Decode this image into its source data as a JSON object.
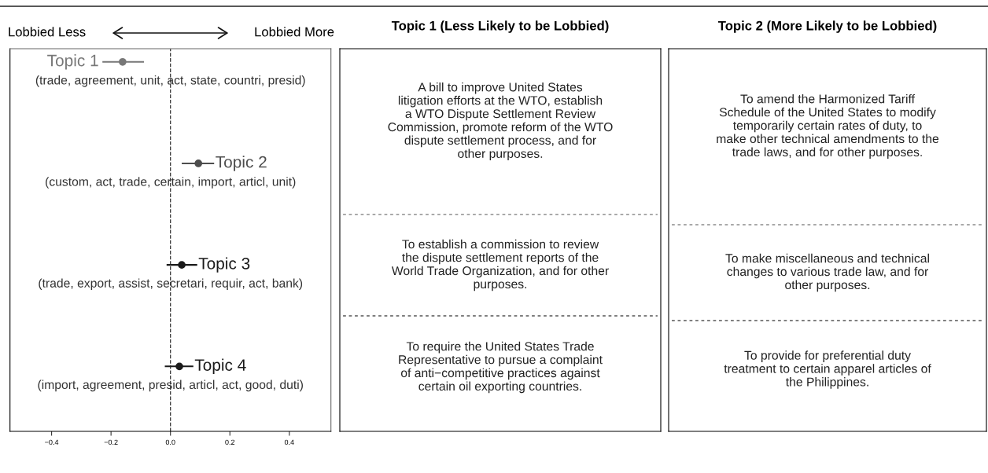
{
  "chart_data": [
    {
      "type": "scatter",
      "orientation": "horizontal",
      "categories": [
        "Topic 1",
        "Topic 2",
        "Topic 3",
        "Topic 4"
      ],
      "values": [
        -0.161,
        0.094,
        0.038,
        0.03
      ],
      "errors": [
        [
          -0.229,
          -0.089
        ],
        [
          0.038,
          0.147
        ],
        [
          -0.013,
          0.09
        ],
        [
          -0.019,
          0.077
        ]
      ],
      "colors": [
        "#777777",
        "#4d4d4d",
        "#1a1a1a",
        "#1a1a1a"
      ],
      "xlim": [
        -0.54,
        0.54
      ],
      "xticks": [
        -0.4,
        -0.2,
        {
          "value": 0,
          "label": "0.0"
        },
        0.2,
        0.4
      ],
      "ref_lines": [
        {
          "axis": "x",
          "value": 0,
          "line_style": "dashed",
          "color": "#333333"
        }
      ],
      "tick_labels": "x",
      "marker": "circle",
      "grid": false,
      "legend": false,
      "annotations": [
        "(trade, agreement, unit, act, state, countri, presid)",
        "(custom, act, trade, certain, import, articl, unit)",
        "(trade, export, assist, secretari, requir, act, bank)",
        "(import, agreement, presid, articl, act, good, duti)",
        "Lobbied Less",
        "Lobbied More"
      ]
    },
    {
      "type": "other",
      "title": "Topic 1 (Less Likely to be Lobbied)",
      "annotations": [
        "A bill to improve United States\nlitigation efforts at the WTO, establish\na WTO Dispute Settlement Review\nCommission, promote reform of the WTO\ndispute settlement process, and for\nother purposes.",
        "To establish a commission to review\nthe dispute settlement reports of the\nWorld Trade Organization, and for other\npurposes.",
        "To require the United States Trade\nRepresentative to pursue a complaint\nof anti−competitive practices against\ncertain oil exporting countries."
      ]
    },
    {
      "type": "other",
      "title": "Topic 2 (More Likely to be Lobbied)",
      "annotations": [
        "To amend the Harmonized Tariff\nSchedule of the United States to modify\ntemporarily certain rates of duty, to\nmake other technical amendments to the\ntrade laws, and for other purposes.",
        "To make miscellaneous and technical\nchanges to various trade law, and for\nother purposes.",
        "To provide for preferential duty\ntreatment to certain apparel articles of\nthe Philippines."
      ]
    }
  ]
}
